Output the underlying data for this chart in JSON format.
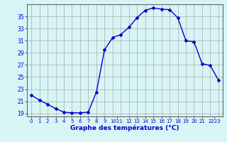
{
  "hours": [
    0,
    1,
    2,
    3,
    4,
    5,
    6,
    7,
    8,
    9,
    10,
    11,
    12,
    13,
    14,
    15,
    16,
    17,
    18,
    19,
    20,
    21,
    22,
    23
  ],
  "temps": [
    22.0,
    21.2,
    20.5,
    19.8,
    19.2,
    19.1,
    19.1,
    19.2,
    22.5,
    29.5,
    31.5,
    32.0,
    33.2,
    34.8,
    36.0,
    36.4,
    36.2,
    36.1,
    34.8,
    31.0,
    30.8,
    27.2,
    26.9,
    24.5
  ],
  "line_color": "#0000cc",
  "marker": "D",
  "marker_size": 2,
  "background_color": "#d8f5f5",
  "grid_color": "#aaaaaa",
  "xlabel": "Graphe des températures (°C)",
  "xlabel_color": "#0000cc",
  "tick_color": "#0000cc",
  "ylim": [
    18.5,
    37.0
  ],
  "yticks": [
    19,
    21,
    23,
    25,
    27,
    29,
    31,
    33,
    35
  ],
  "xlim": [
    -0.5,
    23.5
  ],
  "xtick_positions": [
    0,
    1,
    2,
    3,
    4,
    5,
    6,
    7,
    8,
    9,
    10.5,
    12,
    13,
    14,
    15,
    16,
    17,
    18,
    19,
    20,
    21,
    22.5
  ],
  "xtick_labels": [
    "0",
    "1",
    "2",
    "3",
    "4",
    "5",
    "6",
    "7",
    "8",
    "9",
    "1011",
    "12",
    "13",
    "14",
    "15",
    "16",
    "17",
    "18",
    "19",
    "20",
    "21",
    "2223"
  ]
}
